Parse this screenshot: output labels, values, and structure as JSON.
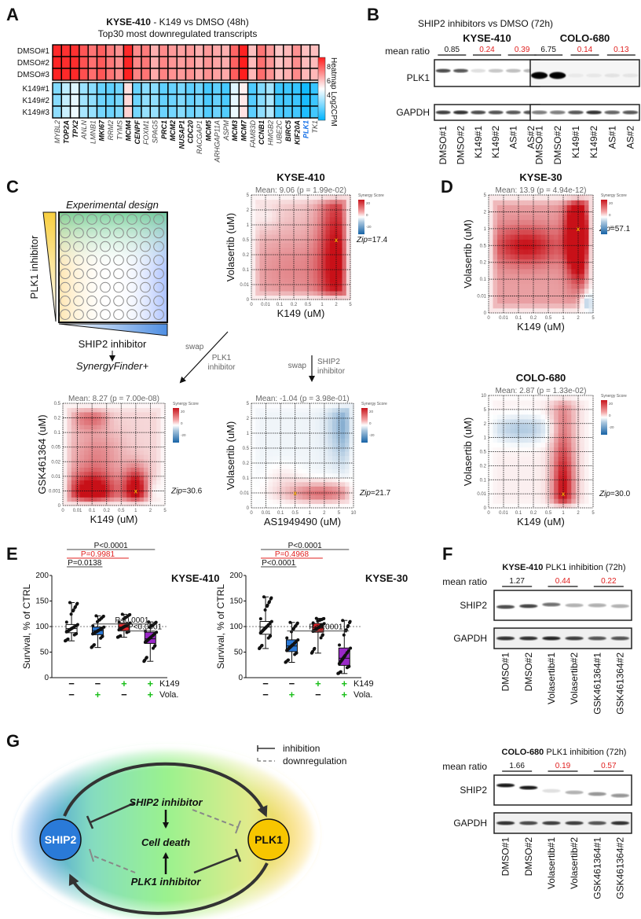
{
  "panels": {
    "A": {
      "label": "A",
      "title_bold": "KYSE-410",
      "title_rest": " -  K149 vs DMSO (48h)",
      "subtitle": "Top30 most downregulated transcripts",
      "colorbar_label": "Heatmap Log2CPM",
      "colorbar_ticks": [
        "8",
        "6",
        "4"
      ],
      "colorbar_range": [
        3,
        9
      ],
      "rows": [
        "DMSO#1",
        "DMSO#2",
        "DMSO#3",
        "K149#1",
        "K149#2",
        "K149#3"
      ],
      "genes": [
        {
          "name": "MYBL2",
          "style": "italic"
        },
        {
          "name": "TOP2A",
          "style": "bold"
        },
        {
          "name": "TPX2",
          "style": "bold"
        },
        {
          "name": "ANLN",
          "style": "italic"
        },
        {
          "name": "LMNB1",
          "style": "italic"
        },
        {
          "name": "MKI67",
          "style": "bold"
        },
        {
          "name": "RRM2",
          "style": "italic"
        },
        {
          "name": "TYMS",
          "style": "italic"
        },
        {
          "name": "MCM4",
          "style": "bold"
        },
        {
          "name": "CENPF",
          "style": "bold"
        },
        {
          "name": "FOXM1",
          "style": "italic"
        },
        {
          "name": "SPAG5",
          "style": "italic"
        },
        {
          "name": "PRC1",
          "style": "bold"
        },
        {
          "name": "MCM2",
          "style": "bold"
        },
        {
          "name": "NUSAP1",
          "style": "bold"
        },
        {
          "name": "CDC20",
          "style": "bold"
        },
        {
          "name": "RACGAP1",
          "style": "italic"
        },
        {
          "name": "MCM5",
          "style": "bold"
        },
        {
          "name": "ARHGAP11A",
          "style": "italic"
        },
        {
          "name": "ASPM",
          "style": "italic"
        },
        {
          "name": "MCM3",
          "style": "bold"
        },
        {
          "name": "MCM7",
          "style": "bold"
        },
        {
          "name": "FAM83D",
          "style": "italic"
        },
        {
          "name": "CCNB1",
          "style": "bold"
        },
        {
          "name": "HMGB2",
          "style": "italic"
        },
        {
          "name": "UBE2C",
          "style": "italic"
        },
        {
          "name": "BIRC5",
          "style": "bold"
        },
        {
          "name": "KIF20A",
          "style": "bold"
        },
        {
          "name": "PLK1",
          "style": "blue"
        },
        {
          "name": "TK1",
          "style": "italic"
        }
      ],
      "dmso_values": [
        8.9,
        8.8,
        8.8,
        8.3,
        7.9,
        8.2,
        7.8,
        7.5,
        8.9,
        7.6,
        7.8,
        7.1,
        7.6,
        7.4,
        7.3,
        7.4,
        7.1,
        7.4,
        7.2,
        7.1,
        8.1,
        9.0,
        6.9,
        7.9,
        7.4,
        6.8,
        7.0,
        7.5,
        6.9,
        6.9
      ],
      "k149_values": [
        4.6,
        5.3,
        5.7,
        4.9,
        4.7,
        4.3,
        4.2,
        4.4,
        6.5,
        4.3,
        4.7,
        4.7,
        4.2,
        4.3,
        4.5,
        4.2,
        4.4,
        3.9,
        4.2,
        3.9,
        5.7,
        6.3,
        4.0,
        4.6,
        5.0,
        3.8,
        3.8,
        3.7,
        3.3,
        3.7
      ]
    },
    "B": {
      "label": "B",
      "title": "SHIP2 inhibitors vs DMSO (72h)",
      "mean_ratio_label": "mean ratio",
      "blots": [
        {
          "cell_line": "KYSE-410",
          "ratios": [
            {
              "value": "0.85",
              "color": "black"
            },
            {
              "value": "0.24",
              "color": "red"
            },
            {
              "value": "0.39",
              "color": "red"
            }
          ],
          "lanes": [
            "DMSO#1",
            "DMSO#2",
            "K149#1",
            "K149#2",
            "AS#1",
            "AS#2"
          ],
          "plk1_band_intensity": [
            0.75,
            0.7,
            0.12,
            0.22,
            0.25,
            0.28
          ],
          "gapdh_band_intensity": [
            0.8,
            0.85,
            0.75,
            0.72,
            0.7,
            0.72
          ]
        },
        {
          "cell_line": "COLO-680",
          "ratios": [
            {
              "value": "6.75",
              "color": "black"
            },
            {
              "value": "0.14",
              "color": "red"
            },
            {
              "value": "0.13",
              "color": "red"
            }
          ],
          "lanes": [
            "DMSO#1",
            "DMSO#2",
            "K149#1",
            "K149#2",
            "AS#1",
            "AS#2"
          ],
          "plk1_band_intensity": [
            1.0,
            1.0,
            0.05,
            0.06,
            0.08,
            0.07
          ],
          "gapdh_band_intensity": [
            0.55,
            0.55,
            0.7,
            0.85,
            0.65,
            0.7
          ]
        }
      ],
      "proteins": [
        "PLK1",
        "GAPDH"
      ]
    },
    "C": {
      "label": "C",
      "design_title": "Experimental design",
      "y_triangle_label": "PLK1 inhibitor",
      "x_triangle_label": "SHIP2 inhibitor",
      "tool_label": "SynergyFinder+",
      "swap_left": "swap",
      "swap_left_sub": [
        "PLK1",
        "inhibitor"
      ],
      "swap_down": "swap",
      "swap_down_sub": [
        "SHIP2",
        "inhibitor"
      ]
    },
    "D": {
      "label": "D"
    },
    "E": {
      "label": "E",
      "plots": [
        {
          "title": "KYSE-410",
          "ylabel": "Survival, % of CTRL",
          "yticks": [
            "0",
            "50",
            "100",
            "150",
            "200"
          ],
          "ylim": [
            0,
            200
          ],
          "boxes": [
            {
              "group": "CTRL",
              "q1": 88,
              "median": 96,
              "q3": 104,
              "min": 72,
              "max": 147,
              "color": "#ffffff"
            },
            {
              "group": "Vola",
              "q1": 84,
              "median": 92,
              "q3": 99,
              "min": 59,
              "max": 121,
              "color": "#2a78d6"
            },
            {
              "group": "K149",
              "q1": 92,
              "median": 99,
              "q3": 107,
              "min": 79,
              "max": 124,
              "color": "#e8262a"
            },
            {
              "group": "K149+Vola",
              "q1": 67,
              "median": 76,
              "q3": 89,
              "min": 32,
              "max": 109,
              "color": "#9a28c8"
            }
          ],
          "brackets": [
            {
              "from": 0,
              "to": 3,
              "text": "P<0.0001",
              "color": "black",
              "level": 3
            },
            {
              "from": 0,
              "to": 2,
              "text": "P=0.9981",
              "color": "red",
              "level": 2
            },
            {
              "from": 0,
              "to": 1,
              "text": "P=0.0138",
              "color": "black",
              "level": 1
            },
            {
              "from": 1,
              "to": 3,
              "text": "P<0.0001",
              "color": "black",
              "level": 0.2
            },
            {
              "from": 2,
              "to": 3,
              "text": "P<0.0001",
              "color": "black",
              "level": -0.6
            }
          ],
          "k149": [
            "−",
            "−",
            "+",
            "+"
          ],
          "vola": [
            "−",
            "+",
            "−",
            "+"
          ]
        },
        {
          "title": "KYSE-30",
          "ylabel": "Survival, % of CTRL",
          "yticks": [
            "0",
            "50",
            "100",
            "150",
            "200"
          ],
          "ylim": [
            0,
            200
          ],
          "boxes": [
            {
              "group": "CTRL",
              "q1": 85,
              "median": 99,
              "q3": 110,
              "min": 57,
              "max": 158,
              "color": "#ffffff"
            },
            {
              "group": "Vola",
              "q1": 51,
              "median": 62,
              "q3": 74,
              "min": 30,
              "max": 108,
              "color": "#2a78d6"
            },
            {
              "group": "K149",
              "q1": 89,
              "median": 98,
              "q3": 106,
              "min": 48,
              "max": 116,
              "color": "#e8262a"
            },
            {
              "group": "K149+Vola",
              "q1": 24,
              "median": 38,
              "q3": 58,
              "min": 8,
              "max": 112,
              "color": "#9a28c8"
            }
          ],
          "brackets": [
            {
              "from": 0,
              "to": 3,
              "text": "P<0.0001",
              "color": "black",
              "level": 3
            },
            {
              "from": 0,
              "to": 2,
              "text": "P=0.4968",
              "color": "red",
              "level": 2
            },
            {
              "from": 0,
              "to": 1,
              "text": "P<0.0001",
              "color": "black",
              "level": 1
            },
            {
              "from": 1,
              "to": 3,
              "text": "P<0.0001",
              "color": "black",
              "level": -0.6
            }
          ],
          "k149": [
            "−",
            "−",
            "+",
            "+"
          ],
          "vola": [
            "−",
            "+",
            "−",
            "+"
          ]
        }
      ],
      "row_labels": [
        "K149",
        "Vola."
      ]
    },
    "F": {
      "label": "F",
      "mean_ratio_label": "mean ratio",
      "blots": [
        {
          "title_bold": "KYSE-410",
          "title_rest": " PLK1 inhibition (72h)",
          "ratios": [
            {
              "value": "1.27",
              "color": "black"
            },
            {
              "value": "0.44",
              "color": "red"
            },
            {
              "value": "0.22",
              "color": "red"
            }
          ],
          "lanes": [
            "DMSO#1",
            "DMSO#2",
            "Volasertib#1",
            "Volasertib#2",
            "GSK461364#1",
            "GSK461364#2"
          ],
          "ship2_band_intensity": [
            0.75,
            0.78,
            0.6,
            0.3,
            0.35,
            0.3
          ],
          "gapdh_band_intensity": [
            0.85,
            0.85,
            0.9,
            0.8,
            0.7,
            0.7
          ]
        },
        {
          "title_bold": "COLO-680",
          "title_rest": " PLK1 inhibition (72h)",
          "ratios": [
            {
              "value": "1.66",
              "color": "black"
            },
            {
              "value": "0.19",
              "color": "red"
            },
            {
              "value": "0.57",
              "color": "red"
            }
          ],
          "lanes": [
            "DMSO#1",
            "DMSO#2",
            "Volasertib#1",
            "Volasertib#2",
            "GSK461364#1",
            "GSK461364#2"
          ],
          "ship2_band_intensity": [
            0.95,
            0.95,
            0.12,
            0.3,
            0.45,
            0.45
          ],
          "gapdh_band_intensity": [
            0.85,
            0.75,
            0.8,
            0.8,
            0.7,
            0.85
          ]
        }
      ],
      "proteins": [
        "SHIP2",
        "GAPDH"
      ]
    },
    "G": {
      "label": "G",
      "legend_inhibition": "inhibition",
      "legend_downregulation": "downregulation",
      "node_left": "SHIP2",
      "node_right": "PLK1",
      "top_text": "SHIP2 inhibitor",
      "center_text": "Cell death",
      "bottom_text": "PLK1 inhibitor",
      "node_left_color": "#2a7ad8",
      "node_right_color": "#f7c600"
    }
  },
  "chart_data": [
    {
      "type": "heatmap",
      "title": "KYSE-410 - K149 vs DMSO (48h) — Top30 most downregulated transcripts",
      "legend": "Heatmap Log2CPM"
    },
    {
      "id": "synergy-c-top",
      "type": "heatmap",
      "title": "KYSE-410",
      "subtitle": "Mean: 9.06 (p = 1.99e-02)",
      "xlabel": "K149 (uM)",
      "ylabel": "Volasertib (uM)",
      "xticks": [
        "0",
        "0.01",
        "0.1",
        "0.2",
        "0.5",
        "1",
        "2",
        "5"
      ],
      "yticks": [
        "0",
        "0.01",
        "0.1",
        "0.2",
        "0.5",
        "1",
        "2",
        "5"
      ],
      "legend_title": "Synergy Score",
      "legend_ticks": [
        "20",
        "0",
        "-20"
      ],
      "annotation": "Zip=17.4",
      "max_point": {
        "x": "2",
        "y": "0.5"
      },
      "hotspots": [
        {
          "x": 6,
          "y": 3,
          "v": 22,
          "sx": 0.9,
          "sy": 4.5
        },
        {
          "x": 3,
          "y": 2,
          "v": 9,
          "sx": 2.5,
          "sy": 2
        },
        {
          "x": 1,
          "y": 5.6,
          "v": -5,
          "sx": 0.7,
          "sy": 0.7
        }
      ],
      "base": 6
    },
    {
      "id": "synergy-c-left",
      "type": "heatmap",
      "title": "",
      "subtitle": "Mean: 8.27 (p = 7.00e-08)",
      "xlabel": "K149 (uM)",
      "ylabel": "GSK461364 (uM)",
      "xticks": [
        "0",
        "0.01",
        "0.1",
        "0.2",
        "0.5",
        "1",
        "2",
        "5"
      ],
      "yticks": [
        "0",
        "0.001",
        "0.01",
        "0.02",
        "0.05",
        "0.1",
        "0.2",
        "0.5"
      ],
      "legend_title": "Synergy Score",
      "legend_ticks": [
        "20",
        "0",
        "-20"
      ],
      "annotation": "Zip=30.6",
      "max_point": {
        "x": "1",
        "y": "0.001"
      },
      "hotspots": [
        {
          "x": 2,
          "y": 1,
          "v": 30,
          "sx": 1.2,
          "sy": 0.9
        },
        {
          "x": 5,
          "y": 1.2,
          "v": 28,
          "sx": 0.6,
          "sy": 1
        },
        {
          "x": 2.3,
          "y": 3.5,
          "v": 10,
          "sx": 1.3,
          "sy": 1.3
        },
        {
          "x": 1.5,
          "y": 6,
          "v": 10,
          "sx": 0.6,
          "sy": 0.6
        },
        {
          "x": 2.5,
          "y": 6,
          "v": 8,
          "sx": 0.5,
          "sy": 0.5
        },
        {
          "x": 6.3,
          "y": 1,
          "v": -6,
          "sx": 0.4,
          "sy": 0.6
        }
      ],
      "base": 5
    },
    {
      "id": "synergy-c-bottom",
      "type": "heatmap",
      "title": "",
      "subtitle": "Mean: -1.04 (p = 3.98e-01)",
      "xlabel": "AS1949490 (uM)",
      "ylabel": "Volasertib (uM)",
      "xticks": [
        "0",
        "0.01",
        "0.1",
        "0.5",
        "1",
        "2",
        "5",
        "10"
      ],
      "yticks": [
        "0",
        "0.01",
        "0.1",
        "0.2",
        "0.5",
        "1",
        "2",
        "5"
      ],
      "legend_title": "Synergy Score",
      "legend_ticks": [
        "20",
        "0",
        "-20"
      ],
      "annotation": "Zip=21.7",
      "max_point": {
        "x": "0.5",
        "y": "0.01"
      },
      "hotspots": [
        {
          "x": 6.5,
          "y": 5.5,
          "v": -14,
          "sx": 0.8,
          "sy": 1.6
        },
        {
          "x": 4.8,
          "y": 1,
          "v": 20,
          "sx": 2.0,
          "sy": 0.55
        },
        {
          "x": 2.2,
          "y": 2.2,
          "v": 4,
          "sx": 1,
          "sy": 0.6
        }
      ],
      "base": -2
    },
    {
      "id": "synergy-d-top",
      "type": "heatmap",
      "title": "KYSE-30",
      "subtitle": "Mean: 13.9 (p = 4.94e-12)",
      "xlabel": "K149 (uM)",
      "ylabel": "Volasertib (uM)",
      "xticks": [
        "0",
        "0.01",
        "0.1",
        "0.2",
        "0.5",
        "1",
        "2",
        "5"
      ],
      "yticks": [
        "0",
        "0.01",
        "0.1",
        "0.2",
        "0.5",
        "1",
        "2",
        "5"
      ],
      "legend_title": "Synergy Score",
      "legend_ticks": [
        "20",
        "0",
        "-20"
      ],
      "annotation": "Zip=57.1",
      "max_point": {
        "x": "2",
        "y": "1"
      },
      "hotspots": [
        {
          "x": 6,
          "y": 4.6,
          "v": 45,
          "sx": 0.55,
          "sy": 1.6
        },
        {
          "x": 2.5,
          "y": 4,
          "v": 18,
          "sx": 1.6,
          "sy": 0.8
        },
        {
          "x": 7,
          "y": 0.6,
          "v": -35,
          "sx": 0.5,
          "sy": 0.5
        }
      ],
      "base": 12
    },
    {
      "id": "synergy-d-bottom",
      "type": "heatmap",
      "title": "COLO-680",
      "subtitle": "Mean: 2.87 (p = 1.33e-02)",
      "xlabel": "K149 (uM)",
      "ylabel": "Volasertib (uM)",
      "xticks": [
        "0",
        "0.01",
        "0.1",
        "0.2",
        "0.5",
        "1",
        "2",
        "5"
      ],
      "yticks": [
        "0",
        "0.01",
        "0.1",
        "0.2",
        "0.5",
        "1",
        "2",
        "5",
        "10"
      ],
      "legend_title": "Synergy Score",
      "legend_ticks": [
        "20",
        "0",
        "-20"
      ],
      "annotation": "Zip=30.0",
      "max_point": {
        "x": "1",
        "y": "0.01"
      },
      "hotspots": [
        {
          "x": 5,
          "y": 1.5,
          "v": 28,
          "sx": 0.55,
          "sy": 2.6
        },
        {
          "x": 5,
          "y": 6.5,
          "v": 10,
          "sx": 0.6,
          "sy": 1.5
        },
        {
          "x": 2.2,
          "y": 5.6,
          "v": -12,
          "sx": 1.6,
          "sy": 0.7
        }
      ],
      "base": 2
    },
    {
      "id": "boxplot-e",
      "type": "box",
      "series_ref": "panels.E.plots"
    }
  ]
}
